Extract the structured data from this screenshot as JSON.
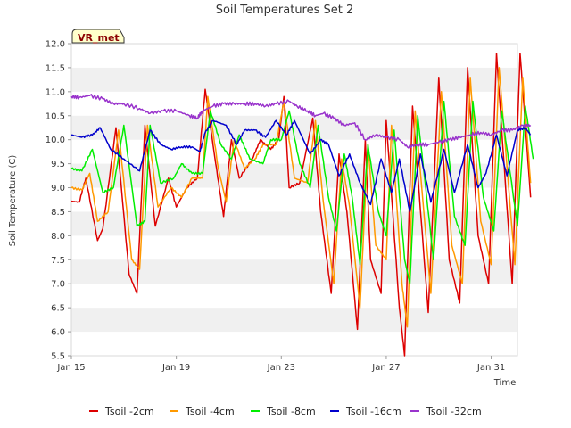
{
  "chart_data": {
    "type": "line",
    "title": "Soil Temperatures Set 2",
    "xlabel": "Time",
    "ylabel": "Soil Temperature (C)",
    "badge": "VR_met",
    "xlim": [
      0,
      17
    ],
    "ylim": [
      5.5,
      12.0
    ],
    "x_ticks": [
      {
        "x": 0,
        "label": "Jan 15"
      },
      {
        "x": 4,
        "label": "Jan 19"
      },
      {
        "x": 8,
        "label": "Jan 23"
      },
      {
        "x": 12,
        "label": "Jan 27"
      },
      {
        "x": 16,
        "label": "Jan 31"
      }
    ],
    "y_ticks": [
      {
        "y": 5.5,
        "label": "5.5"
      },
      {
        "y": 6.0,
        "label": "6.0"
      },
      {
        "y": 6.5,
        "label": "6.5"
      },
      {
        "y": 7.0,
        "label": "7.0"
      },
      {
        "y": 7.5,
        "label": "7.5"
      },
      {
        "y": 8.0,
        "label": "8.0"
      },
      {
        "y": 8.5,
        "label": "8.5"
      },
      {
        "y": 9.0,
        "label": "9.0"
      },
      {
        "y": 9.5,
        "label": "9.5"
      },
      {
        "y": 10.0,
        "label": "10.0"
      },
      {
        "y": 10.5,
        "label": "10.5"
      },
      {
        "y": 11.0,
        "label": "11.0"
      },
      {
        "y": 11.5,
        "label": "11.5"
      },
      {
        "y": 12.0,
        "label": "12.0"
      }
    ],
    "grid": "horizontal bands",
    "legend_position": "bottom",
    "series": [
      {
        "name": "Tsoil -2cm",
        "color": "#dd0000",
        "points": [
          [
            0,
            8.72
          ],
          [
            0.3,
            8.7
          ],
          [
            0.55,
            9.2
          ],
          [
            1.0,
            7.9
          ],
          [
            1.2,
            8.15
          ],
          [
            1.7,
            10.25
          ],
          [
            2.2,
            7.2
          ],
          [
            2.5,
            6.8
          ],
          [
            2.8,
            10.3
          ],
          [
            3.2,
            8.2
          ],
          [
            3.7,
            9.2
          ],
          [
            4.0,
            8.6
          ],
          [
            4.4,
            9.0
          ],
          [
            4.8,
            9.2
          ],
          [
            5.1,
            11.05
          ],
          [
            5.5,
            9.5
          ],
          [
            5.8,
            8.4
          ],
          [
            6.1,
            10.0
          ],
          [
            6.4,
            9.2
          ],
          [
            6.9,
            9.6
          ],
          [
            7.2,
            10.0
          ],
          [
            7.6,
            9.8
          ],
          [
            7.9,
            10.0
          ],
          [
            8.1,
            10.9
          ],
          [
            8.3,
            9.0
          ],
          [
            8.7,
            9.1
          ],
          [
            9.2,
            10.45
          ],
          [
            9.5,
            8.5
          ],
          [
            9.9,
            6.8
          ],
          [
            10.2,
            9.7
          ],
          [
            10.5,
            8.5
          ],
          [
            10.9,
            6.05
          ],
          [
            11.2,
            10.0
          ],
          [
            11.4,
            7.5
          ],
          [
            11.8,
            6.8
          ],
          [
            12.0,
            10.4
          ],
          [
            12.5,
            6.5
          ],
          [
            12.7,
            5.5
          ],
          [
            13.0,
            10.7
          ],
          [
            13.6,
            6.4
          ],
          [
            14.0,
            11.3
          ],
          [
            14.4,
            7.5
          ],
          [
            14.8,
            6.6
          ],
          [
            15.1,
            11.5
          ],
          [
            15.5,
            8.0
          ],
          [
            15.9,
            7.0
          ],
          [
            16.2,
            11.8
          ],
          [
            16.8,
            7.0
          ],
          [
            17.1,
            11.8
          ],
          [
            17.5,
            8.8
          ]
        ]
      },
      {
        "name": "Tsoil -4cm",
        "color": "#ff9900",
        "points": [
          [
            0,
            9.0
          ],
          [
            0.4,
            8.95
          ],
          [
            0.7,
            9.3
          ],
          [
            1.0,
            8.3
          ],
          [
            1.4,
            8.5
          ],
          [
            1.8,
            10.2
          ],
          [
            2.3,
            7.5
          ],
          [
            2.6,
            7.3
          ],
          [
            2.9,
            10.3
          ],
          [
            3.3,
            8.6
          ],
          [
            3.8,
            9.0
          ],
          [
            4.2,
            8.8
          ],
          [
            4.6,
            9.2
          ],
          [
            5.0,
            9.2
          ],
          [
            5.2,
            10.9
          ],
          [
            5.6,
            9.4
          ],
          [
            5.9,
            8.7
          ],
          [
            6.2,
            10.0
          ],
          [
            6.6,
            9.4
          ],
          [
            7.0,
            9.6
          ],
          [
            7.3,
            9.9
          ],
          [
            7.8,
            9.9
          ],
          [
            8.1,
            10.8
          ],
          [
            8.5,
            9.2
          ],
          [
            9.0,
            9.1
          ],
          [
            9.3,
            10.4
          ],
          [
            9.6,
            8.7
          ],
          [
            10.0,
            7.0
          ],
          [
            10.3,
            9.6
          ],
          [
            10.6,
            8.6
          ],
          [
            11.0,
            6.5
          ],
          [
            11.3,
            9.9
          ],
          [
            11.6,
            7.8
          ],
          [
            12.0,
            7.5
          ],
          [
            12.2,
            10.3
          ],
          [
            12.6,
            7.0
          ],
          [
            12.8,
            6.1
          ],
          [
            13.1,
            10.6
          ],
          [
            13.7,
            6.8
          ],
          [
            14.1,
            11.0
          ],
          [
            14.5,
            7.8
          ],
          [
            14.9,
            7.0
          ],
          [
            15.2,
            11.3
          ],
          [
            15.6,
            8.3
          ],
          [
            16.0,
            7.4
          ],
          [
            16.3,
            11.5
          ],
          [
            16.9,
            7.4
          ],
          [
            17.2,
            11.3
          ],
          [
            17.5,
            9.1
          ]
        ]
      },
      {
        "name": "Tsoil -8cm",
        "color": "#00ee00",
        "points": [
          [
            0,
            9.4
          ],
          [
            0.4,
            9.35
          ],
          [
            0.8,
            9.8
          ],
          [
            1.2,
            8.9
          ],
          [
            1.6,
            9.0
          ],
          [
            2.0,
            10.3
          ],
          [
            2.5,
            8.2
          ],
          [
            2.8,
            8.3
          ],
          [
            3.0,
            10.3
          ],
          [
            3.4,
            9.1
          ],
          [
            3.9,
            9.2
          ],
          [
            4.2,
            9.5
          ],
          [
            4.6,
            9.3
          ],
          [
            5.0,
            9.3
          ],
          [
            5.3,
            10.6
          ],
          [
            5.7,
            9.9
          ],
          [
            6.1,
            9.6
          ],
          [
            6.4,
            10.1
          ],
          [
            6.8,
            9.6
          ],
          [
            7.3,
            9.5
          ],
          [
            7.6,
            10.0
          ],
          [
            8.0,
            10.0
          ],
          [
            8.3,
            10.6
          ],
          [
            8.7,
            9.5
          ],
          [
            9.1,
            9.0
          ],
          [
            9.4,
            10.3
          ],
          [
            9.8,
            8.8
          ],
          [
            10.1,
            8.1
          ],
          [
            10.4,
            9.7
          ],
          [
            10.7,
            8.8
          ],
          [
            11.0,
            7.4
          ],
          [
            11.3,
            9.9
          ],
          [
            11.7,
            8.5
          ],
          [
            12.0,
            8.0
          ],
          [
            12.3,
            10.2
          ],
          [
            12.7,
            7.5
          ],
          [
            12.9,
            7.0
          ],
          [
            13.2,
            10.5
          ],
          [
            13.8,
            7.5
          ],
          [
            14.2,
            10.8
          ],
          [
            14.6,
            8.4
          ],
          [
            15.0,
            7.8
          ],
          [
            15.3,
            10.8
          ],
          [
            15.7,
            8.8
          ],
          [
            16.1,
            8.1
          ],
          [
            16.4,
            10.6
          ],
          [
            17.0,
            8.2
          ],
          [
            17.3,
            10.7
          ],
          [
            17.6,
            9.6
          ]
        ]
      },
      {
        "name": "Tsoil -16cm",
        "color": "#0000cc",
        "points": [
          [
            0,
            10.1
          ],
          [
            0.4,
            10.05
          ],
          [
            0.8,
            10.1
          ],
          [
            1.1,
            10.25
          ],
          [
            1.5,
            9.8
          ],
          [
            2.0,
            9.6
          ],
          [
            2.6,
            9.35
          ],
          [
            3.0,
            10.2
          ],
          [
            3.4,
            9.9
          ],
          [
            3.8,
            9.8
          ],
          [
            4.2,
            9.85
          ],
          [
            4.6,
            9.85
          ],
          [
            4.9,
            9.75
          ],
          [
            5.1,
            10.15
          ],
          [
            5.4,
            10.4
          ],
          [
            5.9,
            10.3
          ],
          [
            6.3,
            9.9
          ],
          [
            6.6,
            10.2
          ],
          [
            7.0,
            10.2
          ],
          [
            7.4,
            10.05
          ],
          [
            7.8,
            10.4
          ],
          [
            8.2,
            10.1
          ],
          [
            8.5,
            10.4
          ],
          [
            9.1,
            9.7
          ],
          [
            9.5,
            10.0
          ],
          [
            9.8,
            9.9
          ],
          [
            10.2,
            9.25
          ],
          [
            10.6,
            9.7
          ],
          [
            11.0,
            9.1
          ],
          [
            11.4,
            8.65
          ],
          [
            11.8,
            9.6
          ],
          [
            12.2,
            8.9
          ],
          [
            12.5,
            9.6
          ],
          [
            12.9,
            8.5
          ],
          [
            13.3,
            9.7
          ],
          [
            13.7,
            8.7
          ],
          [
            14.2,
            9.8
          ],
          [
            14.6,
            8.9
          ],
          [
            15.1,
            9.9
          ],
          [
            15.5,
            9.0
          ],
          [
            15.8,
            9.3
          ],
          [
            16.2,
            10.1
          ],
          [
            16.6,
            9.25
          ],
          [
            17.0,
            10.2
          ],
          [
            17.3,
            10.25
          ],
          [
            17.5,
            10.1
          ]
        ]
      },
      {
        "name": "Tsoil -32cm",
        "color": "#9933cc",
        "points": [
          [
            0,
            10.9
          ],
          [
            0.3,
            10.88
          ],
          [
            0.7,
            10.92
          ],
          [
            1.2,
            10.85
          ],
          [
            1.6,
            10.75
          ],
          [
            2.0,
            10.75
          ],
          [
            2.6,
            10.65
          ],
          [
            3.0,
            10.55
          ],
          [
            3.5,
            10.6
          ],
          [
            4.0,
            10.6
          ],
          [
            4.5,
            10.5
          ],
          [
            4.8,
            10.45
          ],
          [
            5.0,
            10.6
          ],
          [
            5.4,
            10.7
          ],
          [
            5.8,
            10.75
          ],
          [
            6.2,
            10.75
          ],
          [
            6.6,
            10.75
          ],
          [
            7.0,
            10.75
          ],
          [
            7.4,
            10.7
          ],
          [
            7.8,
            10.75
          ],
          [
            8.3,
            10.8
          ],
          [
            8.6,
            10.7
          ],
          [
            9.0,
            10.6
          ],
          [
            9.3,
            10.5
          ],
          [
            9.6,
            10.55
          ],
          [
            10.0,
            10.45
          ],
          [
            10.4,
            10.3
          ],
          [
            10.8,
            10.35
          ],
          [
            11.2,
            10.0
          ],
          [
            11.6,
            10.1
          ],
          [
            12.0,
            10.05
          ],
          [
            12.5,
            10.0
          ],
          [
            12.8,
            9.85
          ],
          [
            13.2,
            9.9
          ],
          [
            13.6,
            9.9
          ],
          [
            14.0,
            9.95
          ],
          [
            14.4,
            10.0
          ],
          [
            14.8,
            10.05
          ],
          [
            15.2,
            10.1
          ],
          [
            15.6,
            10.15
          ],
          [
            16.0,
            10.1
          ],
          [
            16.4,
            10.2
          ],
          [
            16.8,
            10.2
          ],
          [
            17.2,
            10.3
          ],
          [
            17.5,
            10.3
          ]
        ]
      }
    ]
  }
}
